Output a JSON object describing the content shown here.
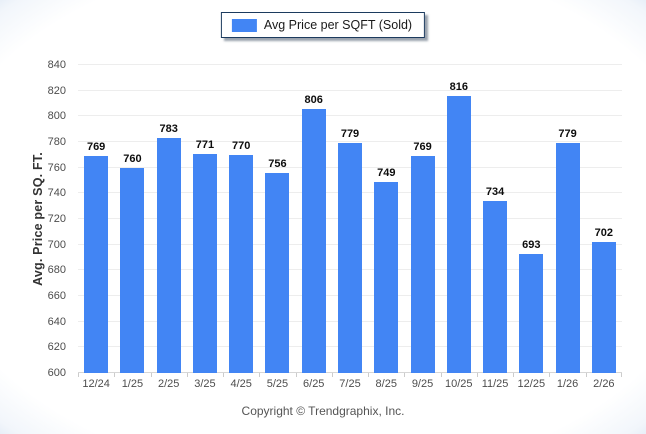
{
  "legend": {
    "label": "Avg Price per SQFT (Sold)",
    "swatch_color": "#4285f4"
  },
  "footer": {
    "copyright": "Copyright © Trendgraphix, Inc."
  },
  "colors": {
    "bar": "#4285f4",
    "gridline": "#ededed",
    "legend_border": "#1c3b5e"
  },
  "chart_data": {
    "type": "bar",
    "title": "",
    "xlabel": "",
    "ylabel": "Avg. Price per SQ. FT.",
    "categories": [
      "12/24",
      "1/25",
      "2/25",
      "3/25",
      "4/25",
      "5/25",
      "6/25",
      "7/25",
      "8/25",
      "9/25",
      "10/25",
      "11/25",
      "12/25",
      "1/26",
      "2/26"
    ],
    "values": [
      769,
      760,
      783,
      771,
      770,
      756,
      806,
      779,
      749,
      769,
      816,
      734,
      693,
      779,
      702
    ],
    "series_name": "Avg Price per SQFT (Sold)",
    "ylim": [
      600,
      840
    ],
    "ytick_step": 20,
    "yticks": [
      600,
      620,
      640,
      660,
      680,
      700,
      720,
      740,
      760,
      780,
      800,
      820,
      840
    ],
    "grid": true,
    "data_labels": true,
    "legend_position": "top-center",
    "bar_color": "#4285f4"
  }
}
